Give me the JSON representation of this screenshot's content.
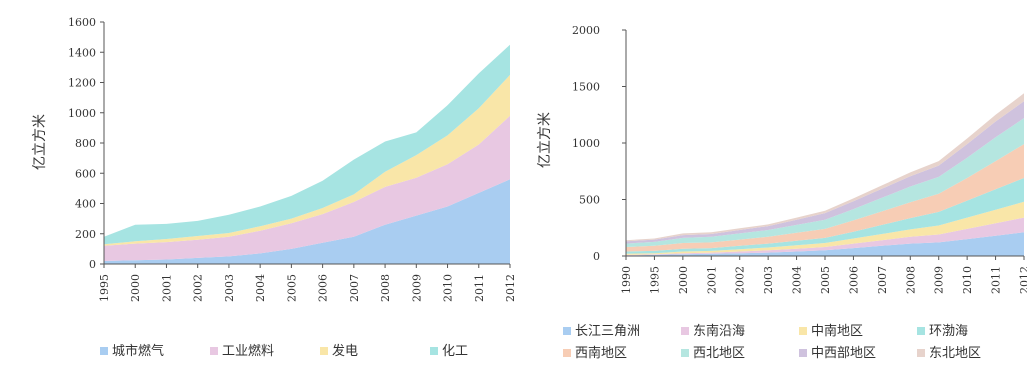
{
  "chart_data": [
    {
      "type": "area",
      "stacked": true,
      "ylabel": "亿立方米",
      "ylim": [
        0,
        1600
      ],
      "yticks": [
        0,
        200,
        400,
        600,
        800,
        1000,
        1200,
        1400,
        1600
      ],
      "categories": [
        "1995",
        "2000",
        "2001",
        "2002",
        "2003",
        "2004",
        "2005",
        "2006",
        "2007",
        "2008",
        "2009",
        "2010",
        "2011",
        "2012"
      ],
      "series": [
        {
          "name": "城市燃气",
          "color": "#a9cdf1",
          "values": [
            20,
            25,
            30,
            40,
            50,
            70,
            100,
            140,
            180,
            260,
            320,
            380,
            470,
            560
          ]
        },
        {
          "name": "工业燃料",
          "color": "#e8c8e2",
          "values": [
            100,
            110,
            115,
            120,
            130,
            150,
            170,
            190,
            230,
            250,
            250,
            280,
            320,
            420
          ]
        },
        {
          "name": "发电",
          "color": "#f9e6a8",
          "values": [
            10,
            15,
            20,
            25,
            25,
            30,
            30,
            40,
            50,
            100,
            150,
            190,
            240,
            270
          ]
        },
        {
          "name": "化工",
          "color": "#a6e4e2",
          "values": [
            50,
            110,
            100,
            100,
            120,
            130,
            150,
            180,
            230,
            200,
            150,
            200,
            230,
            200
          ]
        }
      ],
      "legend_position": "bottom"
    },
    {
      "type": "area",
      "stacked": true,
      "ylabel": "亿立方米",
      "ylim": [
        0,
        2000
      ],
      "yticks": [
        0,
        500,
        1000,
        1500,
        2000
      ],
      "categories": [
        "1990",
        "1995",
        "2000",
        "2001",
        "2002",
        "2003",
        "2004",
        "2005",
        "2006",
        "2007",
        "2008",
        "2009",
        "2010",
        "2011",
        "2012"
      ],
      "series": [
        {
          "name": "长江三角洲",
          "color": "#a9cdf1",
          "values": [
            5,
            10,
            15,
            20,
            25,
            30,
            40,
            50,
            70,
            90,
            110,
            120,
            150,
            180,
            210
          ]
        },
        {
          "name": "东南沿海",
          "color": "#e8c8e2",
          "values": [
            5,
            5,
            10,
            10,
            15,
            20,
            25,
            30,
            40,
            50,
            60,
            70,
            90,
            110,
            130
          ]
        },
        {
          "name": "中南地区",
          "color": "#f9e6a8",
          "values": [
            10,
            10,
            15,
            15,
            20,
            25,
            30,
            35,
            45,
            55,
            65,
            80,
            100,
            120,
            140
          ]
        },
        {
          "name": "环渤海",
          "color": "#a6e4e2",
          "values": [
            20,
            20,
            25,
            25,
            30,
            35,
            40,
            45,
            60,
            80,
            100,
            120,
            150,
            180,
            210
          ]
        },
        {
          "name": "西南地区",
          "color": "#f7cdb5",
          "values": [
            40,
            45,
            50,
            50,
            55,
            60,
            70,
            80,
            100,
            120,
            140,
            160,
            200,
            250,
            300
          ]
        },
        {
          "name": "西北地区",
          "color": "#b5e6e0",
          "values": [
            30,
            35,
            45,
            50,
            55,
            60,
            70,
            80,
            100,
            120,
            140,
            150,
            180,
            210,
            230
          ]
        },
        {
          "name": "中西部地区",
          "color": "#cfc2de",
          "values": [
            20,
            20,
            25,
            25,
            30,
            35,
            45,
            60,
            70,
            80,
            90,
            100,
            120,
            140,
            150
          ]
        },
        {
          "name": "东北地区",
          "color": "#e7d3cc",
          "values": [
            10,
            10,
            15,
            15,
            15,
            15,
            20,
            20,
            25,
            30,
            35,
            40,
            50,
            60,
            70
          ]
        }
      ],
      "legend_position": "bottom"
    }
  ]
}
